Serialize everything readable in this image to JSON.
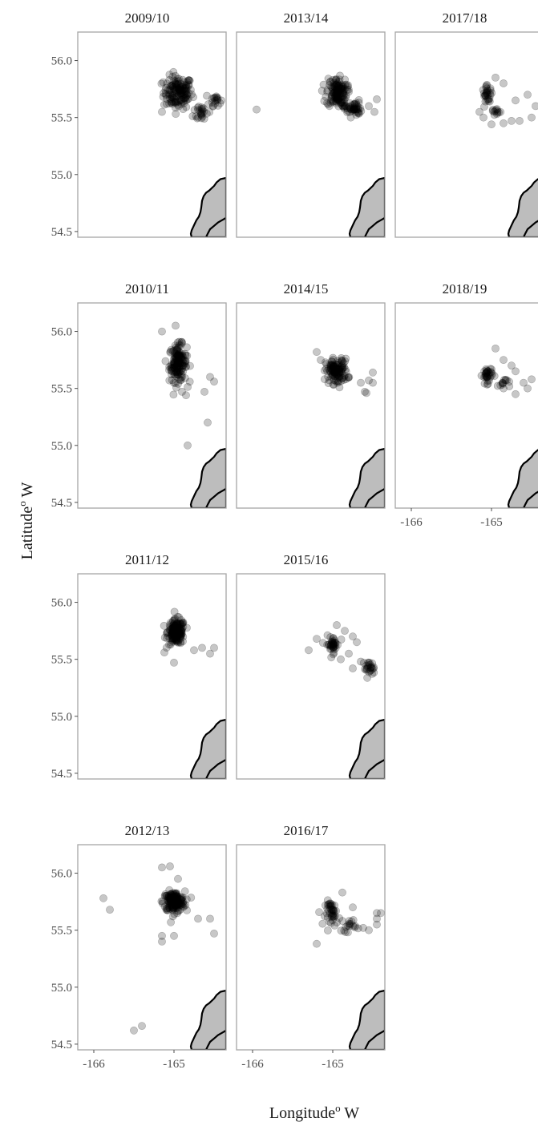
{
  "figure": {
    "xlabel": "Longitude",
    "xlabel_sup": "o",
    "xlabel_suffix": " W",
    "ylabel": "Latitude",
    "ylabel_sup": "o",
    "ylabel_suffix": " W"
  },
  "chart_data": {
    "type": "scatter",
    "xlim": [
      -166.2,
      -164.35
    ],
    "ylim": [
      54.45,
      56.25
    ],
    "x_ticks": [
      -166,
      -165
    ],
    "x_tick_labels": [
      "-166",
      "-165"
    ],
    "y_ticks": [
      54.5,
      55.0,
      55.5,
      56.0
    ],
    "y_tick_labels": [
      "54.5",
      "55.0",
      "55.5",
      "56.0"
    ],
    "point_color": "#000000",
    "land_color": "#bdbdbd",
    "coastline": [
      [
        -164.35,
        54.97
      ],
      [
        -164.42,
        54.96
      ],
      [
        -164.47,
        54.93
      ],
      [
        -164.5,
        54.9
      ],
      [
        -164.53,
        54.88
      ],
      [
        -164.56,
        54.86
      ],
      [
        -164.6,
        54.84
      ],
      [
        -164.63,
        54.81
      ],
      [
        -164.65,
        54.77
      ],
      [
        -164.66,
        54.71
      ],
      [
        -164.67,
        54.67
      ],
      [
        -164.69,
        54.63
      ],
      [
        -164.72,
        54.6
      ],
      [
        -164.74,
        54.57
      ],
      [
        -164.76,
        54.54
      ],
      [
        -164.78,
        54.51
      ],
      [
        -164.79,
        54.48
      ],
      [
        -164.78,
        54.45
      ],
      [
        -164.35,
        54.45
      ]
    ],
    "coastline_inner": [
      [
        -164.35,
        54.62
      ],
      [
        -164.4,
        54.6
      ],
      [
        -164.45,
        54.58
      ],
      [
        -164.5,
        54.55
      ],
      [
        -164.55,
        54.52
      ],
      [
        -164.58,
        54.48
      ],
      [
        -164.6,
        54.45
      ]
    ],
    "panels": [
      {
        "title": "2009/10",
        "clusters": [
          [
            -164.95,
            55.72,
            0.2,
            0.16,
            150
          ],
          [
            -164.65,
            55.55,
            0.12,
            0.1,
            25
          ],
          [
            -164.48,
            55.66,
            0.07,
            0.06,
            18
          ]
        ],
        "points": [
          [
            -165.15,
            55.55
          ],
          [
            -164.7,
            55.5
          ]
        ]
      },
      {
        "title": "2010/11",
        "clusters": [
          [
            -164.95,
            55.72,
            0.12,
            0.18,
            150
          ]
        ],
        "points": [
          [
            -164.55,
            55.6
          ],
          [
            -164.5,
            55.56
          ],
          [
            -164.62,
            55.47
          ],
          [
            -164.9,
            55.47
          ],
          [
            -164.85,
            55.44
          ],
          [
            -164.58,
            55.2
          ],
          [
            -164.83,
            55.0
          ],
          [
            -164.98,
            56.05
          ],
          [
            -165.15,
            56.0
          ]
        ]
      },
      {
        "title": "2011/12",
        "clusters": [
          [
            -164.97,
            55.74,
            0.12,
            0.12,
            160
          ]
        ],
        "points": [
          [
            -164.5,
            55.6
          ],
          [
            -164.55,
            55.55
          ],
          [
            -164.65,
            55.6
          ],
          [
            -164.75,
            55.58
          ],
          [
            -165.0,
            55.47
          ],
          [
            -165.12,
            55.56
          ]
        ]
      },
      {
        "title": "2012/13",
        "clusters": [
          [
            -165.0,
            55.75,
            0.15,
            0.1,
            170
          ]
        ],
        "points": [
          [
            -165.88,
            55.78
          ],
          [
            -165.8,
            55.68
          ],
          [
            -165.15,
            56.05
          ],
          [
            -165.05,
            56.06
          ],
          [
            -164.95,
            55.95
          ],
          [
            -165.0,
            55.45
          ],
          [
            -165.15,
            55.45
          ],
          [
            -164.7,
            55.6
          ],
          [
            -164.55,
            55.6
          ],
          [
            -164.5,
            55.47
          ],
          [
            -165.5,
            54.62
          ],
          [
            -165.4,
            54.66
          ],
          [
            -165.15,
            55.4
          ]
        ]
      },
      {
        "title": "2013/14",
        "clusters": [
          [
            -164.95,
            55.72,
            0.14,
            0.14,
            130
          ],
          [
            -164.75,
            55.58,
            0.12,
            0.08,
            50
          ]
        ],
        "points": [
          [
            -165.95,
            55.57
          ],
          [
            -164.45,
            55.66
          ],
          [
            -164.48,
            55.55
          ],
          [
            -164.55,
            55.6
          ]
        ]
      },
      {
        "title": "2014/15",
        "clusters": [
          [
            -164.95,
            55.65,
            0.15,
            0.12,
            120
          ]
        ],
        "points": [
          [
            -164.65,
            55.55
          ],
          [
            -164.55,
            55.57
          ],
          [
            -164.5,
            55.55
          ],
          [
            -164.58,
            55.46
          ],
          [
            -164.6,
            55.47
          ],
          [
            -164.5,
            55.64
          ],
          [
            -165.2,
            55.82
          ],
          [
            -165.15,
            55.75
          ]
        ]
      },
      {
        "title": "2015/16",
        "clusters": [
          [
            -165.0,
            55.63,
            0.09,
            0.08,
            40
          ],
          [
            -164.55,
            55.42,
            0.08,
            0.07,
            25
          ]
        ],
        "points": [
          [
            -165.3,
            55.58
          ],
          [
            -165.2,
            55.68
          ],
          [
            -164.95,
            55.8
          ],
          [
            -164.85,
            55.75
          ],
          [
            -164.75,
            55.7
          ],
          [
            -164.7,
            55.65
          ],
          [
            -164.8,
            55.55
          ],
          [
            -164.9,
            55.5
          ],
          [
            -164.65,
            55.48
          ],
          [
            -164.75,
            55.42
          ]
        ]
      },
      {
        "title": "2016/17",
        "clusters": [
          [
            -165.0,
            55.65,
            0.1,
            0.12,
            45
          ],
          [
            -164.8,
            55.55,
            0.1,
            0.07,
            18
          ]
        ],
        "points": [
          [
            -165.2,
            55.38
          ],
          [
            -164.88,
            55.83
          ],
          [
            -164.75,
            55.7
          ],
          [
            -164.62,
            55.52
          ],
          [
            -164.55,
            55.5
          ],
          [
            -164.45,
            55.55
          ],
          [
            -164.45,
            55.6
          ],
          [
            -164.4,
            55.65
          ],
          [
            -164.45,
            55.65
          ]
        ]
      },
      {
        "title": "2017/18",
        "clusters": [
          [
            -165.05,
            55.7,
            0.07,
            0.08,
            30
          ],
          [
            -164.95,
            55.55,
            0.07,
            0.05,
            12
          ]
        ],
        "points": [
          [
            -164.95,
            55.85
          ],
          [
            -164.85,
            55.8
          ],
          [
            -164.7,
            55.65
          ],
          [
            -164.55,
            55.7
          ],
          [
            -164.45,
            55.6
          ],
          [
            -164.5,
            55.5
          ],
          [
            -164.65,
            55.47
          ],
          [
            -164.75,
            55.47
          ],
          [
            -164.85,
            55.45
          ],
          [
            -165.0,
            55.44
          ],
          [
            -165.1,
            55.5
          ],
          [
            -165.15,
            55.55
          ]
        ]
      },
      {
        "title": "2018/19",
        "clusters": [
          [
            -165.05,
            55.62,
            0.07,
            0.08,
            35
          ],
          [
            -164.85,
            55.55,
            0.08,
            0.05,
            12
          ]
        ],
        "points": [
          [
            -164.95,
            55.85
          ],
          [
            -164.85,
            55.75
          ],
          [
            -164.75,
            55.7
          ],
          [
            -164.7,
            55.65
          ],
          [
            -164.6,
            55.55
          ],
          [
            -164.5,
            55.58
          ],
          [
            -164.55,
            55.5
          ],
          [
            -164.7,
            55.45
          ],
          [
            -164.85,
            55.5
          ]
        ]
      }
    ]
  }
}
